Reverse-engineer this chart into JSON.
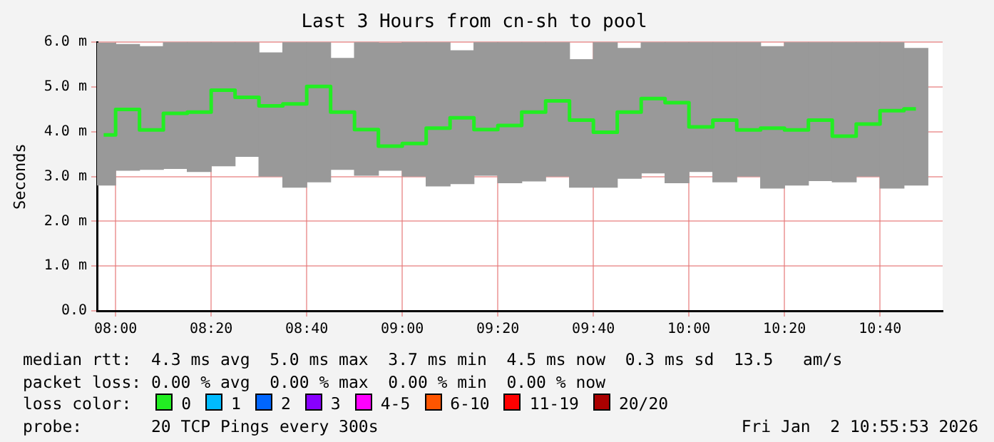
{
  "chart_data": {
    "type": "bar",
    "title": "Last 3 Hours from cn-sh to pool",
    "ylabel": "Seconds",
    "x": [
      7.9583,
      8.0417,
      8.125,
      8.2083,
      8.2917,
      8.375,
      8.4583,
      8.5417,
      8.625,
      8.7083,
      8.7917,
      8.875,
      8.9583,
      9.0417,
      9.125,
      9.2083,
      9.2917,
      9.375,
      9.4583,
      9.5417,
      9.625,
      9.7083,
      9.7917,
      9.875,
      9.9583,
      10.0417,
      10.125,
      10.2083,
      10.2917,
      10.375,
      10.4583,
      10.5417,
      10.625,
      10.7083,
      10.7917
    ],
    "series": [
      {
        "color": "#999999",
        "base": [
          2.81,
          3.14,
          3.16,
          3.18,
          3.11,
          3.24,
          3.45,
          3.01,
          2.76,
          2.88,
          3.16,
          3.03,
          3.14,
          3.01,
          2.79,
          2.84,
          3.03,
          2.86,
          2.9,
          3.01,
          2.76,
          2.76,
          2.96,
          3.08,
          2.86,
          3.11,
          2.88,
          3.01,
          2.74,
          2.81,
          2.91,
          2.88,
          3.01,
          2.74,
          2.81
        ],
        "values": [
          3.17,
          2.81,
          2.74,
          2.82,
          2.89,
          2.76,
          2.55,
          2.75,
          3.24,
          3.12,
          2.48,
          2.97,
          2.84,
          2.99,
          3.21,
          2.97,
          2.97,
          3.14,
          3.1,
          2.99,
          2.85,
          3.24,
          2.9,
          2.92,
          3.14,
          2.89,
          3.12,
          2.99,
          3.16,
          3.19,
          3.09,
          3.12,
          2.99,
          3.26,
          3.05
        ]
      },
      {
        "type": "step",
        "color": "#22ee22",
        "values": [
          3.93,
          4.5,
          4.04,
          4.41,
          4.44,
          4.93,
          4.77,
          4.58,
          4.62,
          5.01,
          4.44,
          4.05,
          3.68,
          3.74,
          4.08,
          4.31,
          4.05,
          4.14,
          4.44,
          4.69,
          4.26,
          3.99,
          4.44,
          4.74,
          4.65,
          4.11,
          4.26,
          4.04,
          4.08,
          4.04,
          4.26,
          3.9,
          4.17,
          4.47,
          4.51
        ]
      }
    ],
    "xlim": [
      7.935,
      10.885
    ],
    "xticks": [
      {
        "value": 8,
        "label": "08:00"
      },
      {
        "value": 8.3333,
        "label": "08:20"
      },
      {
        "value": 8.6667,
        "label": "08:40"
      },
      {
        "value": 9,
        "label": "09:00"
      },
      {
        "value": 9.3333,
        "label": "09:20"
      },
      {
        "value": 9.6667,
        "label": "09:40"
      },
      {
        "value": 10,
        "label": "10:00"
      },
      {
        "value": 10.3333,
        "label": "10:20"
      },
      {
        "value": 10.6667,
        "label": "10:40"
      }
    ],
    "ylim": [
      0,
      6
    ],
    "yticks": [
      {
        "value": 0,
        "label": "0.0"
      },
      {
        "value": 1,
        "label": "1.0 m"
      },
      {
        "value": 2,
        "label": "2.0 m"
      },
      {
        "value": 3,
        "label": "3.0 m"
      },
      {
        "value": 4,
        "label": "4.0 m"
      },
      {
        "value": 5,
        "label": "5.0 m"
      },
      {
        "value": 6,
        "label": "6.0 m"
      }
    ],
    "grid": true,
    "legend": false,
    "marker": "none",
    "line_style": "solid",
    "annotations": [
      "median rtt:  4.3 ms avg  5.0 ms max  3.7 ms min  4.5 ms now  0.3 ms sd  13.5   am/s",
      "packet loss: 0.00 % avg  0.00 % max  0.00 % min  0.00 % now",
      "loss color:",
      "0",
      "1",
      "2",
      "3",
      "4-5",
      "6-10",
      "11-19",
      "20/20",
      "probe:       20 TCP Pings every 300s",
      "Fri Jan  2 10:55:53 2026"
    ]
  }
}
